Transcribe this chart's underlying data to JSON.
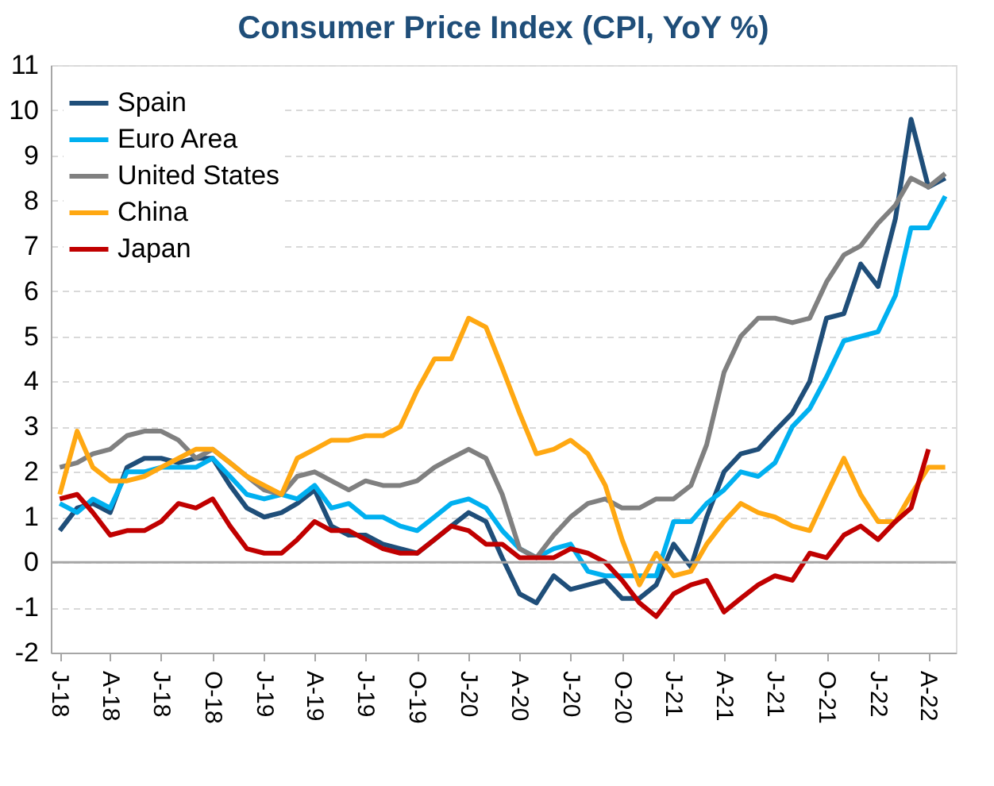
{
  "chart_data": {
    "type": "line",
    "title": "Consumer Price Index (CPI, YoY %)",
    "x": [
      "2018-01",
      "2018-02",
      "2018-03",
      "2018-04",
      "2018-05",
      "2018-06",
      "2018-07",
      "2018-08",
      "2018-09",
      "2018-10",
      "2018-11",
      "2018-12",
      "2019-01",
      "2019-02",
      "2019-03",
      "2019-04",
      "2019-05",
      "2019-06",
      "2019-07",
      "2019-08",
      "2019-09",
      "2019-10",
      "2019-11",
      "2019-12",
      "2020-01",
      "2020-02",
      "2020-03",
      "2020-04",
      "2020-05",
      "2020-06",
      "2020-07",
      "2020-08",
      "2020-09",
      "2020-10",
      "2020-11",
      "2020-12",
      "2021-01",
      "2021-02",
      "2021-03",
      "2021-04",
      "2021-05",
      "2021-06",
      "2021-07",
      "2021-08",
      "2021-09",
      "2021-10",
      "2021-11",
      "2021-12",
      "2022-01",
      "2022-02",
      "2022-03",
      "2022-04",
      "2022-05"
    ],
    "series": [
      {
        "name": "Spain",
        "color": "#1f4e79",
        "values": [
          0.7,
          1.2,
          1.3,
          1.1,
          2.1,
          2.3,
          2.3,
          2.2,
          2.3,
          2.3,
          1.7,
          1.2,
          1.0,
          1.1,
          1.3,
          1.6,
          0.8,
          0.6,
          0.6,
          0.4,
          0.3,
          0.2,
          0.5,
          0.8,
          1.1,
          0.9,
          0.1,
          -0.7,
          -0.9,
          -0.3,
          -0.6,
          -0.5,
          -0.4,
          -0.8,
          -0.8,
          -0.5,
          0.4,
          -0.1,
          1.0,
          2.0,
          2.4,
          2.5,
          2.9,
          3.3,
          4.0,
          5.4,
          5.5,
          6.6,
          6.1,
          7.6,
          9.8,
          8.3,
          8.5
        ]
      },
      {
        "name": "Euro Area",
        "color": "#00b0f0",
        "values": [
          1.3,
          1.1,
          1.4,
          1.2,
          2.0,
          2.0,
          2.1,
          2.1,
          2.1,
          2.3,
          1.9,
          1.5,
          1.4,
          1.5,
          1.4,
          1.7,
          1.2,
          1.3,
          1.0,
          1.0,
          0.8,
          0.7,
          1.0,
          1.3,
          1.4,
          1.2,
          0.7,
          0.3,
          0.1,
          0.3,
          0.4,
          -0.2,
          -0.3,
          -0.3,
          -0.3,
          -0.3,
          0.9,
          0.9,
          1.3,
          1.6,
          2.0,
          1.9,
          2.2,
          3.0,
          3.4,
          4.1,
          4.9,
          5.0,
          5.1,
          5.9,
          7.4,
          7.4,
          8.1
        ]
      },
      {
        "name": "United States",
        "color": "#808080",
        "values": [
          2.1,
          2.2,
          2.4,
          2.5,
          2.8,
          2.9,
          2.9,
          2.7,
          2.3,
          2.5,
          2.2,
          1.9,
          1.6,
          1.5,
          1.9,
          2.0,
          1.8,
          1.6,
          1.8,
          1.7,
          1.7,
          1.8,
          2.1,
          2.3,
          2.5,
          2.3,
          1.5,
          0.3,
          0.1,
          0.6,
          1.0,
          1.3,
          1.4,
          1.2,
          1.2,
          1.4,
          1.4,
          1.7,
          2.6,
          4.2,
          5.0,
          5.4,
          5.4,
          5.3,
          5.4,
          6.2,
          6.8,
          7.0,
          7.5,
          7.9,
          8.5,
          8.3,
          8.6
        ]
      },
      {
        "name": "China",
        "color": "#ffa812",
        "values": [
          1.5,
          2.9,
          2.1,
          1.8,
          1.8,
          1.9,
          2.1,
          2.3,
          2.5,
          2.5,
          2.2,
          1.9,
          1.7,
          1.5,
          2.3,
          2.5,
          2.7,
          2.7,
          2.8,
          2.8,
          3.0,
          3.8,
          4.5,
          4.5,
          5.4,
          5.2,
          4.3,
          3.3,
          2.4,
          2.5,
          2.7,
          2.4,
          1.7,
          0.5,
          -0.5,
          0.2,
          -0.3,
          -0.2,
          0.4,
          0.9,
          1.3,
          1.1,
          1.0,
          0.8,
          0.7,
          1.5,
          2.3,
          1.5,
          0.9,
          0.9,
          1.5,
          2.1,
          2.1
        ]
      },
      {
        "name": "Japan",
        "color": "#c00000",
        "values": [
          1.4,
          1.5,
          1.1,
          0.6,
          0.7,
          0.7,
          0.9,
          1.3,
          1.2,
          1.4,
          0.8,
          0.3,
          0.2,
          0.2,
          0.5,
          0.9,
          0.7,
          0.7,
          0.5,
          0.3,
          0.2,
          0.2,
          0.5,
          0.8,
          0.7,
          0.4,
          0.4,
          0.1,
          0.1,
          0.1,
          0.3,
          0.2,
          0.0,
          -0.4,
          -0.9,
          -1.2,
          -0.7,
          -0.5,
          -0.4,
          -1.1,
          -0.8,
          -0.5,
          -0.3,
          -0.4,
          0.2,
          0.1,
          0.6,
          0.8,
          0.5,
          0.9,
          1.2,
          2.5,
          null
        ]
      }
    ],
    "xlim": [
      "2017-12-16",
      "2022-05-20"
    ],
    "xticks": [
      {
        "value": "2018-01",
        "label": "J-18"
      },
      {
        "value": "2018-04",
        "label": "A-18"
      },
      {
        "value": "2018-07",
        "label": "J-18"
      },
      {
        "value": "2018-10",
        "label": "O-18"
      },
      {
        "value": "2019-01",
        "label": "J-19"
      },
      {
        "value": "2019-04",
        "label": "A-19"
      },
      {
        "value": "2019-07",
        "label": "J-19"
      },
      {
        "value": "2019-10",
        "label": "O-19"
      },
      {
        "value": "2020-01",
        "label": "J-20"
      },
      {
        "value": "2020-04",
        "label": "A-20"
      },
      {
        "value": "2020-07",
        "label": "J-20"
      },
      {
        "value": "2020-10",
        "label": "O-20"
      },
      {
        "value": "2021-01",
        "label": "J-21"
      },
      {
        "value": "2021-04",
        "label": "A-21"
      },
      {
        "value": "2021-07",
        "label": "J-21"
      },
      {
        "value": "2021-10",
        "label": "O-21"
      },
      {
        "value": "2022-01",
        "label": "J-22"
      },
      {
        "value": "2022-04",
        "label": "A-22"
      }
    ],
    "ylim": [
      -2,
      11
    ],
    "yticks": [
      -2,
      -1,
      0,
      1,
      2,
      3,
      4,
      5,
      6,
      7,
      8,
      9,
      10,
      11
    ],
    "ref_lines": [
      {
        "axis": "y",
        "value": 0,
        "color": "#a6a6a6"
      }
    ],
    "grid": "y",
    "legend": "top left",
    "line_style": "solid",
    "marker": "none"
  }
}
